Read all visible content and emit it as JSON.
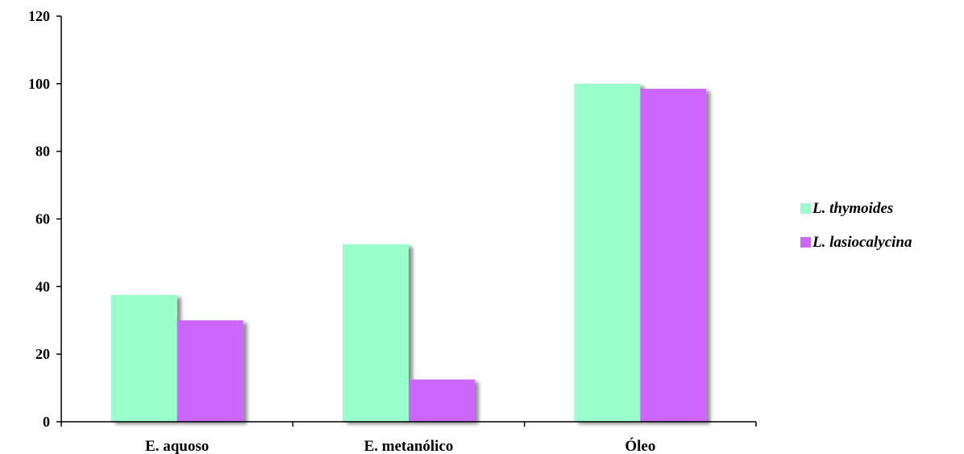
{
  "chart_data": {
    "type": "bar",
    "categories": [
      "E. aquoso",
      "E. metanólico",
      "Óleo"
    ],
    "series": [
      {
        "name": "L. thymoides",
        "values": [
          37.5,
          52.5,
          100
        ],
        "color": "#99ffcc"
      },
      {
        "name": "L. lasiocalycina",
        "values": [
          30,
          12.5,
          98.5
        ],
        "color": "#cc66ff"
      }
    ],
    "yticks": [
      "0",
      "20",
      "40",
      "60",
      "80",
      "100",
      "120"
    ],
    "ylim": [
      0,
      120
    ],
    "grid": false,
    "legend_position": "right",
    "title": "",
    "xlabel": "",
    "ylabel": ""
  }
}
